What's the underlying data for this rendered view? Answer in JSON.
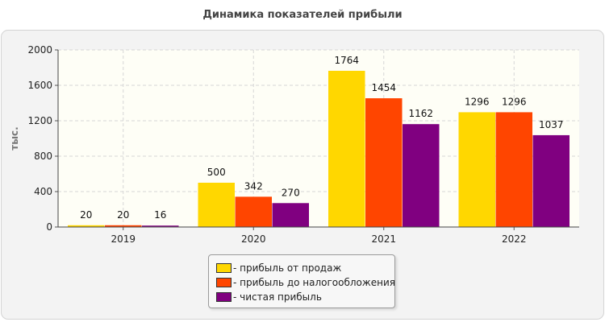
{
  "chart_data": {
    "type": "bar",
    "title": "Динамика показателей прибыли",
    "ylabel": "тыс.",
    "xlabel": "",
    "categories": [
      "2019",
      "2020",
      "2021",
      "2022"
    ],
    "series": [
      {
        "name": "- прибыль от продаж",
        "color": "#ffd700",
        "values": [
          20,
          500,
          1764,
          1296
        ]
      },
      {
        "name": "- прибыль до налогообложения",
        "color": "#ff4500",
        "values": [
          20,
          342,
          1454,
          1296
        ]
      },
      {
        "name": "- чистая прибыль",
        "color": "#800080",
        "values": [
          16,
          270,
          1162,
          1037
        ]
      }
    ],
    "ylim": [
      0,
      2000
    ],
    "yticks": [
      0,
      400,
      800,
      1200,
      1600,
      2000
    ],
    "grid": true,
    "legend_position": "bottom-center"
  }
}
